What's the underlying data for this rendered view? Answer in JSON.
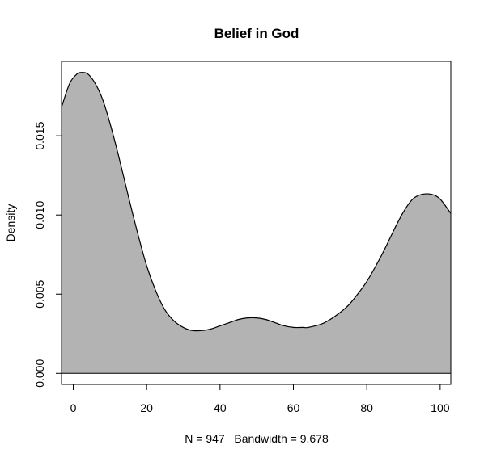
{
  "chart_data": {
    "type": "area",
    "title": "Belief in God",
    "xlabel": "N = 947   Bandwidth = 9.678",
    "ylabel": "Density",
    "xlim": [
      -3.2,
      102.9
    ],
    "ylim": [
      -0.0007,
      0.0197
    ],
    "x_ticks": [
      0,
      20,
      40,
      60,
      80,
      100
    ],
    "x_tick_labels": [
      "0",
      "20",
      "40",
      "60",
      "80",
      "100"
    ],
    "y_ticks": [
      0.0,
      0.005,
      0.01,
      0.015
    ],
    "y_tick_labels": [
      "0.000",
      "0.005",
      "0.010",
      "0.015"
    ],
    "grid": false,
    "legend": "none",
    "fill_color": "#b3b3b3",
    "line_color": "#000000",
    "baseline": 0,
    "series": [
      {
        "x": [
          -3.2,
          -1.0,
          1.0,
          2.4,
          4.0,
          6.0,
          8.0,
          10.0,
          12.5,
          15.0,
          17.5,
          20.0,
          22.5,
          25.0,
          27.5,
          30.0,
          32.5,
          35.0,
          37.5,
          40.0,
          42.5,
          45.0,
          47.5,
          50.0,
          52.5,
          55.0,
          57.5,
          60.0,
          62.5,
          64.0,
          67.5,
          70.0,
          72.5,
          75.0,
          77.5,
          80.0,
          82.5,
          85.0,
          87.5,
          90.0,
          92.5,
          95.0,
          97.7,
          100.0,
          102.9
        ],
        "y": [
          0.0168,
          0.0183,
          0.0189,
          0.019,
          0.0189,
          0.0183,
          0.0173,
          0.0158,
          0.0136,
          0.0112,
          0.0089,
          0.0068,
          0.0052,
          0.004,
          0.0033,
          0.0029,
          0.0027,
          0.0027,
          0.0028,
          0.003,
          0.0032,
          0.0034,
          0.0035,
          0.0035,
          0.0034,
          0.0032,
          0.003,
          0.0029,
          0.0029,
          0.0029,
          0.0031,
          0.0034,
          0.0038,
          0.0043,
          0.005,
          0.0058,
          0.0068,
          0.0079,
          0.0091,
          0.0102,
          0.011,
          0.0113,
          0.0113,
          0.011,
          0.0101
        ]
      }
    ]
  }
}
